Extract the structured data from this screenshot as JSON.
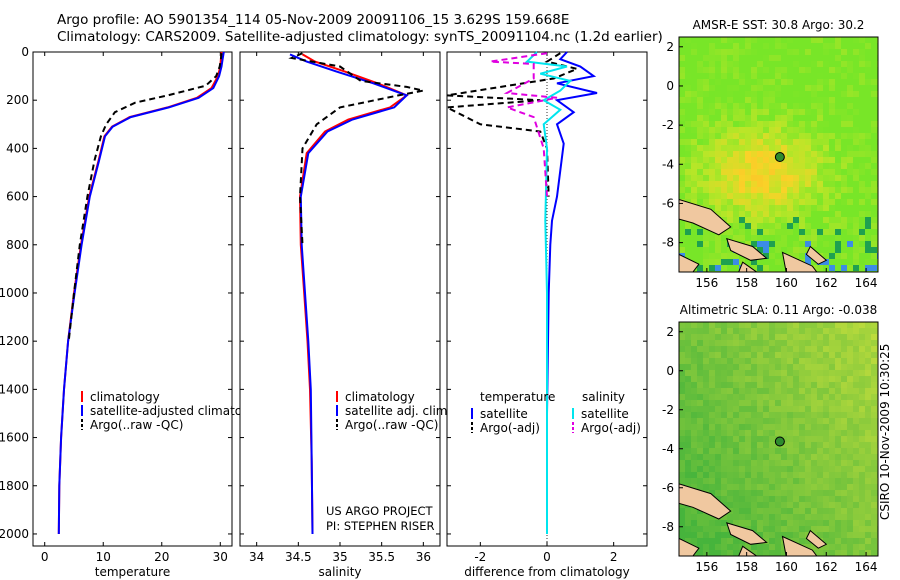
{
  "titles": {
    "line1": "Argo profile: AO 5901354_114 05-Nov-2009 20091106_15 3.629S 159.668E",
    "line2": "Climatology: CARS2009. Satellite-adjusted climatology: synTS_20091104.nc (1.2d earlier)"
  },
  "side_stamp": "CSIRO 10-Nov-2009 10:30:25",
  "project_note": [
    "US ARGO PROJECT",
    "PI: STEPHEN RISER"
  ],
  "colors": {
    "climatology": "#ff0000",
    "satellite": "#0000ff",
    "argo": "#000000",
    "satellite_salinity": "#00e5ee",
    "argo_salinity": "#e000e0",
    "land": "#f0c8a0",
    "float_marker": "#2e8b2e"
  },
  "chart_data": [
    {
      "type": "line",
      "id": "temperature",
      "xlabel": "temperature",
      "ylabel": "",
      "xlim": [
        -2,
        32
      ],
      "ylim": [
        2050,
        0
      ],
      "xticks": [
        0,
        10,
        20,
        30
      ],
      "yticks": [
        0,
        200,
        400,
        600,
        800,
        1000,
        1200,
        1400,
        1600,
        1800,
        2000
      ],
      "legend": [
        "climatology",
        "satellite-adjusted climatology",
        "Argo(..raw -QC)"
      ],
      "legend_placement": "lower-right",
      "series": [
        {
          "name": "climatology",
          "color": "#ff0000",
          "x": [
            30.2,
            30.1,
            30.0,
            29.6,
            28.5,
            26.0,
            21.0,
            14.5,
            11.5,
            10.2,
            9.2,
            7.6,
            6.2,
            5.0,
            4.0,
            3.3,
            2.8,
            2.5,
            2.4
          ],
          "y": [
            0,
            30,
            60,
            100,
            150,
            190,
            230,
            270,
            310,
            350,
            450,
            600,
            800,
            1000,
            1200,
            1400,
            1600,
            1800,
            2000
          ]
        },
        {
          "name": "satellite-adjusted climatology",
          "color": "#0000ff",
          "x": [
            30.6,
            30.4,
            30.2,
            29.8,
            28.8,
            26.3,
            21.2,
            14.7,
            11.6,
            10.3,
            9.3,
            7.7,
            6.3,
            5.1,
            4.0,
            3.3,
            2.8,
            2.5,
            2.4
          ],
          "y": [
            0,
            30,
            60,
            100,
            150,
            190,
            230,
            270,
            310,
            350,
            450,
            600,
            800,
            1000,
            1200,
            1400,
            1600,
            1800,
            2000
          ]
        },
        {
          "name": "Argo(..raw -QC)",
          "color": "#000000",
          "dashed": true,
          "x": [
            30.2,
            30.1,
            29.9,
            29.3,
            27.5,
            21.0,
            15.5,
            12.0,
            10.5,
            9.6,
            8.5,
            7.3,
            6.0,
            5.0,
            4.1
          ],
          "y": [
            5,
            30,
            60,
            100,
            140,
            180,
            210,
            250,
            300,
            350,
            450,
            600,
            800,
            1000,
            1200
          ]
        }
      ]
    },
    {
      "type": "line",
      "id": "salinity",
      "xlabel": "salinity",
      "xlim": [
        33.8,
        36.2
      ],
      "ylim": [
        2050,
        0
      ],
      "xticks": [
        34,
        34.5,
        35,
        35.5,
        36
      ],
      "legend": [
        "climatology",
        "satellite adj. clim.",
        "Argo(..raw -QC)"
      ],
      "legend_placement": "lower-right",
      "series": [
        {
          "name": "climatology",
          "color": "#ff0000",
          "x": [
            34.55,
            34.7,
            35.05,
            35.45,
            35.8,
            35.6,
            35.1,
            34.82,
            34.6,
            34.52,
            34.53,
            34.57,
            34.61,
            34.64,
            34.66,
            34.67
          ],
          "y": [
            10,
            40,
            80,
            130,
            180,
            230,
            280,
            330,
            420,
            600,
            800,
            1000,
            1200,
            1400,
            1700,
            2000
          ]
        },
        {
          "name": "satellite adj. clim.",
          "color": "#0000ff",
          "x": [
            34.4,
            34.6,
            34.95,
            35.4,
            35.8,
            35.65,
            35.15,
            34.85,
            34.62,
            34.53,
            34.54,
            34.58,
            34.62,
            34.65,
            34.66,
            34.67
          ],
          "y": [
            10,
            40,
            80,
            130,
            180,
            230,
            280,
            330,
            420,
            600,
            800,
            1000,
            1200,
            1400,
            1700,
            2000
          ]
        },
        {
          "name": "Argo(..raw -QC)",
          "color": "#000000",
          "dashed": true,
          "x": [
            34.55,
            34.42,
            35.0,
            35.25,
            35.8,
            36.0,
            35.7,
            35.0,
            34.72,
            34.55,
            34.52,
            34.55
          ],
          "y": [
            5,
            25,
            60,
            120,
            145,
            160,
            180,
            230,
            300,
            400,
            600,
            800
          ]
        }
      ]
    },
    {
      "type": "line",
      "id": "difference",
      "xlabel": "difference from climatology",
      "xlim": [
        -3,
        3
      ],
      "ylim": [
        2050,
        0
      ],
      "xticks": [
        -2,
        0,
        2
      ],
      "legend_groups": [
        {
          "title": "temperature",
          "items": [
            "satellite",
            "Argo(-adj)"
          ]
        },
        {
          "title": "salinity",
          "items": [
            "satellite",
            "Argo(-adj)"
          ]
        }
      ],
      "legend_placement": "center",
      "series": [
        {
          "name": "temperature satellite",
          "color": "#0000ff",
          "x": [
            0.6,
            0.4,
            1.0,
            1.4,
            0.3,
            1.5,
            0.3,
            0.8,
            0.3,
            0.5,
            0.3,
            0.15,
            0.1,
            0.05,
            0.0,
            0.0
          ],
          "y": [
            0,
            30,
            60,
            100,
            130,
            170,
            200,
            250,
            300,
            380,
            600,
            700,
            800,
            1000,
            1500,
            2000
          ]
        },
        {
          "name": "temperature Argo(-adj)",
          "color": "#000000",
          "dashed": true,
          "x": [
            0.4,
            0.0,
            0.9,
            0.2,
            -3.0,
            -0.2,
            -3.0,
            -2.0,
            -0.2,
            0.0,
            0.05
          ],
          "y": [
            5,
            40,
            70,
            110,
            180,
            200,
            230,
            300,
            330,
            400,
            600
          ]
        },
        {
          "name": "salinity satellite",
          "color": "#00e5ee",
          "x": [
            -0.3,
            -0.6,
            0.6,
            -0.2,
            0.7,
            0.4,
            -0.1,
            0.4,
            -0.1,
            0.0,
            -0.05,
            0.0,
            0.0
          ],
          "y": [
            0,
            40,
            60,
            90,
            120,
            160,
            200,
            240,
            300,
            400,
            700,
            1000,
            2000
          ]
        },
        {
          "name": "salinity Argo(-adj)",
          "color": "#e000e0",
          "dashed": true,
          "x": [
            0.0,
            -1.7,
            -0.4,
            -0.4,
            -0.8,
            -1.2,
            0.3,
            -1.2,
            -0.4,
            -0.1,
            0.0
          ],
          "y": [
            5,
            40,
            50,
            110,
            140,
            170,
            190,
            230,
            270,
            400,
            600
          ]
        }
      ]
    },
    {
      "type": "heatmap",
      "id": "sst-map",
      "title": "AMSR-E SST: 30.8 Argo: 30.2",
      "xlim": [
        154.6,
        164.6
      ],
      "ylim": [
        -9.5,
        2.5
      ],
      "xticks": [
        156,
        158,
        160,
        162,
        164
      ],
      "yticks": [
        -8,
        -6,
        -4,
        -2,
        0,
        2
      ],
      "float": {
        "lon": 159.668,
        "lat": -3.629
      }
    },
    {
      "type": "heatmap",
      "id": "sla-map",
      "title": "Altimetric SLA: 0.11 Argo: -0.038",
      "xlim": [
        154.6,
        164.6
      ],
      "ylim": [
        -9.5,
        2.5
      ],
      "xticks": [
        156,
        158,
        160,
        162,
        164
      ],
      "yticks": [
        -8,
        -6,
        -4,
        -2,
        0,
        2
      ],
      "float": {
        "lon": 159.668,
        "lat": -3.629
      }
    }
  ]
}
